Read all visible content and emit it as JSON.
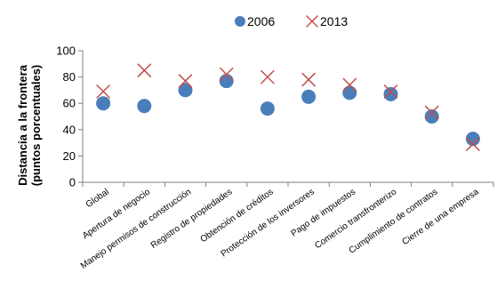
{
  "chart_data": {
    "type": "scatter",
    "title": "",
    "xlabel": "",
    "ylabel": [
      "Distancia a la frontera",
      "(puntos porcentuales)"
    ],
    "ylim": [
      0,
      100
    ],
    "yticks": [
      0,
      20,
      40,
      60,
      80,
      100
    ],
    "grid": false,
    "legend_position": "top-center",
    "categories": [
      "Global",
      "Apertura de negocio",
      "Manejo permisos de construcción",
      "Registro de propiedades",
      "Obtención de créditos",
      "Protección de los inversores",
      "Pago de impuestos",
      "Comercio transfronterizo",
      "Cumplimiento de contratos",
      "Cierre de una empresa"
    ],
    "series": [
      {
        "name": "2006",
        "marker": "circle",
        "color": "#4a7ebb",
        "values": [
          60,
          58,
          70,
          77,
          56,
          65,
          68,
          67,
          50,
          33
        ]
      },
      {
        "name": "2013",
        "marker": "x",
        "color": "#c0504d",
        "values": [
          69,
          85,
          77,
          82,
          80,
          78,
          74,
          69,
          53,
          29
        ]
      }
    ]
  }
}
